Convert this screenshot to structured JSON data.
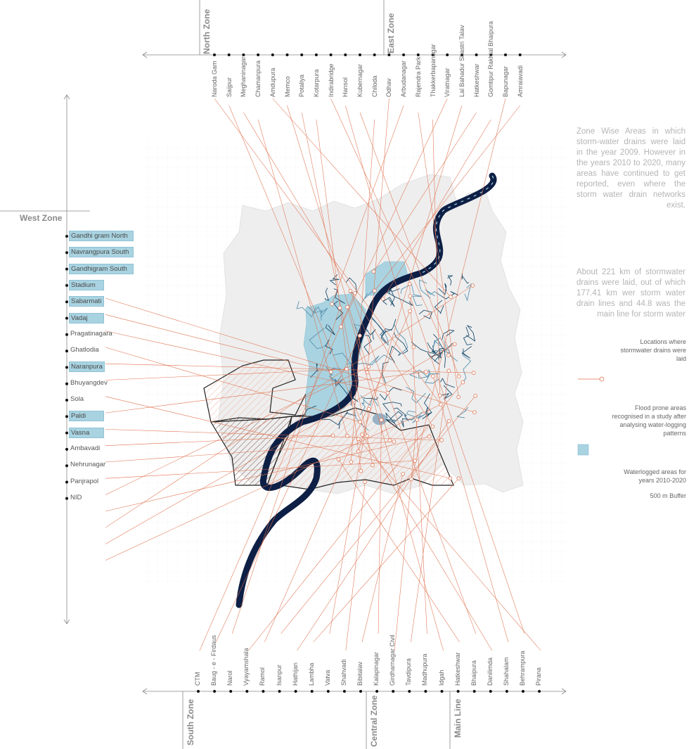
{
  "zones": {
    "north": "North Zone",
    "east": "East Zone",
    "west": "West Zone",
    "south": "South Zone",
    "central": "Central Zone",
    "main": "Main Line"
  },
  "top_labels": [
    "Naroda Gam",
    "Saijpur",
    "Meghaninagar",
    "Chamanpura",
    "Amdupura",
    "Memco",
    "Potaliya",
    "Kotarpura",
    "Indirabridge",
    "Hansol",
    "Kubernagar",
    "Chiloda",
    "Odhav",
    "Arbudanagar",
    "Rajendra Park",
    "Thakkerbapanagar",
    "Viratnagar",
    "Lal Bahadur Shastri Talav",
    "Hatkeshwar",
    "Gomtipur Rakhial Bhaipura",
    "Bapunagar",
    "Amraiavadi"
  ],
  "bottom_labels": [
    "CTM",
    "Baug - e - Firdaus",
    "Narol",
    "Vyayamshala",
    "Ramol",
    "Isanpur",
    "Hathijan",
    "Lambha",
    "Vatva",
    "Shahvadi",
    "Bibitalav",
    "Kalapinagar",
    "Girdharnagar Civil",
    "Tavdipura",
    "Madhupura",
    "Idgah",
    "Hatkeshwar",
    "Bhaipura",
    "Danilimda",
    "Shahalam",
    "Behrampura",
    "Pirana"
  ],
  "west_labels": [
    {
      "text": "Gandhi gram North",
      "hl": true
    },
    {
      "text": "Navrangpura South",
      "hl": true
    },
    {
      "text": "Gandhigram South",
      "hl": true
    },
    {
      "text": "Stadium",
      "hl": true
    },
    {
      "text": "Sabarmati",
      "hl": true
    },
    {
      "text": "Vadaj",
      "hl": true
    },
    {
      "text": "Pragatinagara",
      "hl": false
    },
    {
      "text": "Ghatlodia",
      "hl": false
    },
    {
      "text": "Naranpura",
      "hl": true
    },
    {
      "text": "Bhuyangdev",
      "hl": false
    },
    {
      "text": "Sola",
      "hl": false
    },
    {
      "text": "Paldi",
      "hl": true
    },
    {
      "text": "Vasna",
      "hl": true
    },
    {
      "text": "Ambavadi",
      "hl": false
    },
    {
      "text": "Nehrunagar",
      "hl": false
    },
    {
      "text": "Panjrapol",
      "hl": false
    },
    {
      "text": "NID",
      "hl": false
    }
  ],
  "paragraphs": {
    "p1": "Zone Wise Areas in which storm-water drains were laid in the year 2009. However in the years 2010 to 2020, many areas have continued to get reported, even where the storm water drain networks exist.",
    "p2": "About 221 km of stormwater drains were laid, out of which 177.41 km wer storm water drain lines and 44.8 was the main line for storm water"
  },
  "legend": {
    "locations": "Locations where stormwater drains were laid",
    "flood": "Flood prone areas recognised in a study after analysing water-logging patterns",
    "waterlogged": "Waterlogged areas for years 2010-2020",
    "buffer": "500 m Buffer"
  },
  "colors": {
    "river": "#0d1f45",
    "waterlogged": "#a9d3e1",
    "drain": "#1f4f6e",
    "leader": "#e0724f",
    "city": "#eeeeee",
    "hatch": "#e0724f"
  }
}
